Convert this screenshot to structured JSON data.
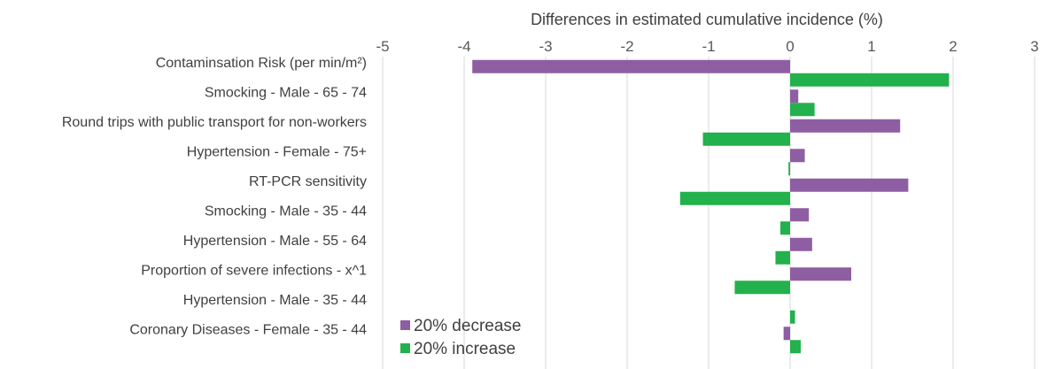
{
  "chart_data": {
    "type": "bar",
    "orientation": "horizontal",
    "title": "",
    "xlabel": "Differences in estimated cumulative incidence (%)",
    "xaxis_position": "top",
    "xlim": [
      -5,
      3
    ],
    "xticks": [
      -5,
      -4,
      -3,
      -2,
      -1,
      0,
      1,
      2,
      3
    ],
    "grid": "vertical",
    "legend_position": "bottom-left",
    "categories": [
      "Contaminsation Risk (per min/m²)",
      "Smocking - Male - 65 - 74",
      "Round trips with public transport for non-workers",
      "Hypertension - Female - 75+",
      "RT-PCR sensitivity",
      "Smocking - Male - 35 - 44",
      "Hypertension - Male - 55 - 64",
      "Proportion of severe infections - x^1",
      "Hypertension - Male - 35 - 44",
      "Coronary Diseases - Female - 35 - 44"
    ],
    "series": [
      {
        "name": "20% decrease",
        "color": "#8e5ea2",
        "values": [
          -3.9,
          0.1,
          1.35,
          0.18,
          1.45,
          0.23,
          0.27,
          0.75,
          0.0,
          -0.08
        ]
      },
      {
        "name": "20% increase",
        "color": "#22b14c",
        "values": [
          1.95,
          0.3,
          -1.07,
          -0.02,
          -1.35,
          -0.12,
          -0.18,
          -0.68,
          0.06,
          0.13
        ]
      }
    ]
  }
}
